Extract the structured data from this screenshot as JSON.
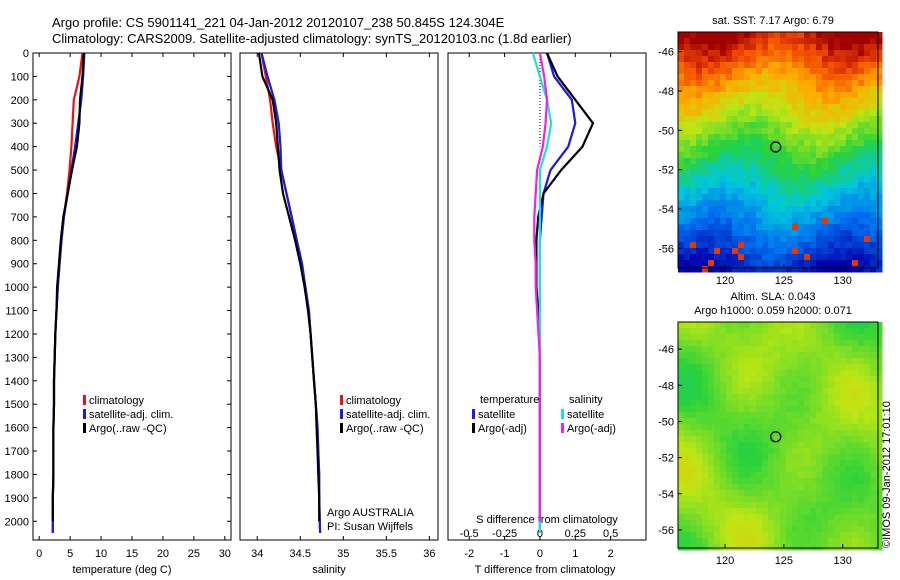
{
  "header": {
    "line1": "Argo profile: CS 5901141_221 04-Jan-2012 20120107_238 50.845S 124.304E",
    "line2": "Climatology: CARS2009. Satellite-adjusted climatology: synTS_20120103.nc (1.8d earlier)"
  },
  "credit": "©IMOS 09-Jan-2012 17:01:10",
  "colors": {
    "climatology": "#ee1111",
    "satellite": "#1a1ae6",
    "argo": "#000000",
    "satellite_s": "#22dddd",
    "argo_s": "#ee22ee",
    "marker": "#000000"
  },
  "chart_data": [
    {
      "id": "temperature",
      "type": "line",
      "xlabel": "temperature (deg C)",
      "xlim": [
        -1,
        31
      ],
      "xticks": [
        0,
        5,
        10,
        15,
        20,
        25,
        30
      ],
      "ylim": [
        0,
        2080
      ],
      "yticks": [
        0,
        100,
        200,
        300,
        400,
        500,
        600,
        700,
        800,
        900,
        1000,
        1100,
        1200,
        1300,
        1400,
        1500,
        1600,
        1700,
        1800,
        1900,
        2000
      ],
      "legend": [
        "climatology",
        "satellite-adj. clim.",
        "Argo(..raw -QC)"
      ],
      "series": [
        {
          "name": "climatology",
          "color": "#ee1111",
          "x": [
            7.0,
            6.5,
            5.6,
            5.4,
            5.2,
            4.9,
            4.5,
            4.0,
            3.6,
            3.3,
            3.0,
            2.8,
            2.6,
            2.5,
            2.4,
            2.4,
            2.3,
            2.3,
            2.3,
            2.2,
            2.2
          ],
          "y": [
            0,
            100,
            200,
            300,
            400,
            500,
            600,
            700,
            800,
            900,
            1000,
            1100,
            1200,
            1300,
            1400,
            1500,
            1600,
            1700,
            1800,
            1900,
            2050
          ]
        },
        {
          "name": "satellite-adj. clim.",
          "color": "#1a1ae6",
          "x": [
            7.3,
            7.1,
            6.8,
            6.3,
            5.8,
            5.2,
            4.6,
            4.0,
            3.6,
            3.3,
            3.0,
            2.8,
            2.6,
            2.5,
            2.4,
            2.4,
            2.3,
            2.3,
            2.3,
            2.2,
            2.2
          ],
          "y": [
            0,
            100,
            200,
            300,
            400,
            500,
            600,
            700,
            800,
            900,
            1000,
            1100,
            1200,
            1300,
            1400,
            1500,
            1600,
            1700,
            1800,
            1900,
            2050
          ]
        },
        {
          "name": "Argo(..raw -QC)",
          "color": "#000000",
          "x": [
            7.2,
            7.0,
            6.6,
            6.5,
            6.1,
            5.3,
            4.6,
            3.9,
            3.5,
            3.2,
            2.9,
            2.8,
            2.6,
            2.5,
            2.4,
            2.4,
            2.3,
            2.3,
            2.3,
            2.2,
            2.2
          ],
          "y": [
            0,
            100,
            200,
            300,
            400,
            500,
            600,
            700,
            800,
            900,
            1000,
            1100,
            1200,
            1300,
            1400,
            1500,
            1600,
            1700,
            1800,
            1900,
            2000
          ]
        }
      ]
    },
    {
      "id": "salinity",
      "type": "line",
      "xlabel": "salinity",
      "xlim": [
        33.8,
        36.1
      ],
      "xticks": [
        34,
        34.5,
        35,
        35.5,
        36
      ],
      "ylim": [
        0,
        2080
      ],
      "legend": [
        "climatology",
        "satellite-adj. clim.",
        "Argo(..raw -QC)"
      ],
      "notes": [
        "Argo AUSTRALIA",
        "PI: Susan Wijffels"
      ],
      "series": [
        {
          "name": "climatology",
          "color": "#ee1111",
          "x": [
            34.05,
            34.1,
            34.15,
            34.18,
            34.22,
            34.28,
            34.34,
            34.4,
            34.46,
            34.52,
            34.56,
            34.6,
            34.62,
            34.64,
            34.66,
            34.68,
            34.7,
            34.71,
            34.72,
            34.72,
            34.73
          ],
          "y": [
            0,
            100,
            200,
            300,
            400,
            500,
            600,
            700,
            800,
            900,
            1000,
            1100,
            1200,
            1300,
            1400,
            1500,
            1600,
            1700,
            1800,
            1900,
            2050
          ]
        },
        {
          "name": "satellite-adj. clim.",
          "color": "#1a1ae6",
          "x": [
            34.05,
            34.12,
            34.2,
            34.25,
            34.27,
            34.28,
            34.34,
            34.4,
            34.46,
            34.52,
            34.56,
            34.6,
            34.62,
            34.64,
            34.66,
            34.68,
            34.7,
            34.71,
            34.72,
            34.72,
            34.73
          ],
          "y": [
            0,
            100,
            200,
            300,
            400,
            500,
            600,
            700,
            800,
            900,
            1000,
            1100,
            1200,
            1300,
            1400,
            1500,
            1600,
            1700,
            1800,
            1900,
            2050
          ]
        },
        {
          "name": "Argo(..raw -QC)",
          "color": "#000000",
          "x": [
            34.02,
            34.06,
            34.18,
            34.22,
            34.24,
            34.26,
            34.3,
            34.37,
            34.44,
            34.5,
            34.55,
            34.59,
            34.62,
            34.64,
            34.66,
            34.68,
            34.69,
            34.7,
            34.71,
            34.72,
            34.72
          ],
          "y": [
            0,
            100,
            200,
            300,
            400,
            500,
            600,
            700,
            800,
            900,
            1000,
            1100,
            1200,
            1300,
            1400,
            1500,
            1600,
            1700,
            1800,
            1900,
            2000
          ]
        }
      ]
    },
    {
      "id": "difference",
      "type": "line",
      "xlabel": "T difference from climatology",
      "xlabel2": "S difference from climatology",
      "xlim": [
        -2.6,
        3.0
      ],
      "xticks": [
        -2,
        -1,
        0,
        1,
        2
      ],
      "xticks2": [
        -0.5,
        -0.25,
        0,
        0.25,
        0.5
      ],
      "xticks2_labels": [
        "-0.5",
        "-0.25",
        "0",
        "0.25",
        "0.5"
      ],
      "ylim": [
        0,
        2080
      ],
      "legend_groups": [
        {
          "title": "temperature",
          "items": [
            "satellite",
            "Argo(-adj)"
          ]
        },
        {
          "title": "salinity",
          "items": [
            "satellite",
            "Argo(-adj)"
          ]
        }
      ],
      "series": [
        {
          "name": "temperature satellite",
          "color": "#1a1ae6",
          "x": [
            0.2,
            0.4,
            0.9,
            1.0,
            0.8,
            0.3,
            0.1,
            0.05,
            0,
            0,
            0,
            0,
            0,
            0,
            0,
            0,
            0,
            0,
            0,
            0,
            0
          ],
          "y": [
            0,
            100,
            200,
            300,
            400,
            500,
            600,
            700,
            800,
            900,
            1000,
            1100,
            1200,
            1300,
            1400,
            1500,
            1600,
            1700,
            1800,
            1900,
            2050
          ]
        },
        {
          "name": "temperature Argo(-adj)",
          "color": "#000000",
          "x": [
            0.2,
            0.5,
            1.0,
            1.5,
            1.2,
            0.6,
            0.1,
            -0.05,
            -0.1,
            -0.1,
            -0.1,
            -0.05,
            0,
            0,
            0,
            0,
            0,
            0,
            0,
            0,
            0
          ],
          "y": [
            0,
            100,
            200,
            300,
            400,
            500,
            600,
            700,
            800,
            900,
            1000,
            1100,
            1200,
            1300,
            1400,
            1500,
            1600,
            1700,
            1800,
            1900,
            2000
          ]
        },
        {
          "name": "salinity satellite",
          "color": "#22dddd",
          "x": [
            -0.05,
            0.0,
            0.05,
            0.08,
            0.05,
            0.0,
            0.0,
            0.0,
            0.0,
            0.0,
            0.0,
            0.0,
            0.0,
            0.0,
            0.0,
            0.0,
            0.0,
            0.0,
            0.0,
            0.0,
            0.0
          ],
          "y": [
            0,
            100,
            200,
            300,
            400,
            500,
            600,
            700,
            800,
            900,
            1000,
            1100,
            1200,
            1300,
            1400,
            1500,
            1600,
            1700,
            1800,
            1900,
            2050
          ]
        },
        {
          "name": "salinity Argo(-adj)",
          "color": "#ee22ee",
          "x": [
            0.0,
            0.03,
            0.05,
            0.04,
            0.02,
            -0.02,
            -0.03,
            -0.04,
            -0.04,
            -0.03,
            -0.03,
            -0.02,
            -0.01,
            0.0,
            0.0,
            0.0,
            0.0,
            0.0,
            0.0,
            0.0,
            0.0
          ],
          "y": [
            0,
            100,
            200,
            300,
            400,
            500,
            600,
            700,
            800,
            900,
            1000,
            1100,
            1200,
            1300,
            1400,
            1500,
            1600,
            1700,
            1800,
            1900,
            2000
          ]
        }
      ]
    },
    {
      "id": "sst_map",
      "type": "heatmap",
      "title": "sat. SST: 7.17 Argo: 6.79",
      "xlim": [
        116,
        133
      ],
      "ylim": [
        -57,
        -45
      ],
      "xticks": [
        120,
        125,
        130
      ],
      "yticks": [
        -46,
        -48,
        -50,
        -52,
        -54,
        -56
      ],
      "marker": {
        "lon": 124.304,
        "lat": -50.845
      }
    },
    {
      "id": "sla_map",
      "type": "heatmap",
      "title": "Altim. SLA: 0.043",
      "subtitle": "Argo h1000: 0.059 h2000: 0.071",
      "xlim": [
        116,
        133
      ],
      "ylim": [
        -57,
        -44.5
      ],
      "xticks": [
        120,
        125,
        130
      ],
      "yticks": [
        -46,
        -48,
        -50,
        -52,
        -54,
        -56
      ],
      "marker": {
        "lon": 124.304,
        "lat": -50.845
      }
    }
  ]
}
